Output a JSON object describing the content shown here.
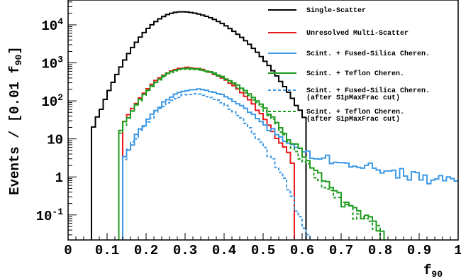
{
  "chart_data": {
    "type": "line",
    "xlabel": "f",
    "xlabel_sub": "90",
    "ylabel": "Events / [0.01 f",
    "ylabel_sub": "90",
    "ylabel_end": "]",
    "xlim": [
      0,
      1
    ],
    "ylim": [
      0.022,
      45000
    ],
    "y_scale": "log",
    "x_ticks": [
      0,
      0.1,
      0.2,
      0.3,
      0.4,
      0.5,
      0.6,
      0.7,
      0.8,
      0.9,
      1
    ],
    "x_tick_labels": [
      "0",
      "0.1",
      "0.2",
      "0.3",
      "0.4",
      "0.5",
      "0.6",
      "0.7",
      "0.8",
      "0.9",
      "1"
    ],
    "y_ticks": [
      {
        "value": 0.1,
        "base": "10",
        "exp": "-1"
      },
      {
        "value": 1,
        "base": "1",
        "exp": ""
      },
      {
        "value": 10,
        "base": "10",
        "exp": ""
      },
      {
        "value": 100,
        "base": "10",
        "exp": "2"
      },
      {
        "value": 1000,
        "base": "10",
        "exp": "3"
      },
      {
        "value": 10000,
        "base": "10",
        "exp": "4"
      }
    ],
    "bin_width": 0.01,
    "legend_position": "top-right",
    "series": [
      {
        "name": "Single-Scatter",
        "color": "#000000",
        "dashed": false,
        "label_lines": [
          "Single-Scatter"
        ],
        "peak": 22000,
        "mu": 0.29,
        "sl": 0.06,
        "sr": 0.088,
        "tail_amp": 0,
        "tail_start": 0.5,
        "tail_decay": 0.3,
        "xmin": 0.06,
        "xmax": 0.61
      },
      {
        "name": "Unresolved Multi-Scatter",
        "color": "#e8191b",
        "dashed": false,
        "label_lines": [
          "Unresolved Multi-Scatter"
        ],
        "peak": 750,
        "mu": 0.305,
        "sl": 0.063,
        "sr": 0.08,
        "tail_amp": 0,
        "tail_start": 0.5,
        "tail_decay": 0.3,
        "xmin": 0.14,
        "xmax": 0.58
      },
      {
        "name": "Scint. + Fused-Silica Cheren.",
        "color": "#3d99e6",
        "dashed": false,
        "label_lines": [
          "Scint. + Fused-Silica Cheren."
        ],
        "peak": 200,
        "mu": 0.325,
        "sl": 0.063,
        "sr": 0.085,
        "tail_amp": 5.5,
        "tail_start": 0.52,
        "tail_decay": 0.23,
        "xmin": 0.14,
        "xmax": 1.0
      },
      {
        "name": "Scint. + Teflon Cheren.",
        "color": "#1f9b1f",
        "dashed": false,
        "label_lines": [
          "Scint. + Teflon Cheren."
        ],
        "peak": 720,
        "mu": 0.305,
        "sl": 0.062,
        "sr": 0.09,
        "tail_amp": 1.2,
        "tail_start": 0.58,
        "tail_decay": 0.07,
        "xmin": 0.13,
        "xmax": 0.81
      },
      {
        "name": "Scint. + Fused-Silica Cheren. (after S1pMaxFrac cut)",
        "color": "#3d99e6",
        "dashed": true,
        "label_lines": [
          "Scint. + Fused-Silica Cheren.",
          "(after S1pMaxFrac cut)"
        ],
        "peak": 150,
        "mu": 0.32,
        "sl": 0.063,
        "sr": 0.072,
        "tail_amp": 0,
        "tail_start": 0.55,
        "tail_decay": 0.1,
        "xmin": 0.14,
        "xmax": 0.67
      },
      {
        "name": "Scint. + Teflon Cheren. (after S1pMaxFrac cut)",
        "color": "#1f9b1f",
        "dashed": true,
        "label_lines": [
          "Scint. + Teflon Cheren.",
          "(after S1pMaxFrac cut)"
        ],
        "peak": 690,
        "mu": 0.305,
        "sl": 0.062,
        "sr": 0.088,
        "tail_amp": 1.0,
        "tail_start": 0.58,
        "tail_decay": 0.07,
        "xmin": 0.13,
        "xmax": 0.8
      }
    ]
  }
}
